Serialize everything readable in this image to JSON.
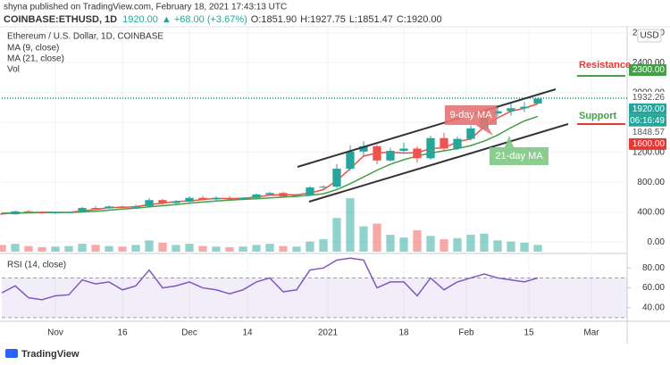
{
  "header": {
    "publisher": "shyna published on TradingView.com, February 18, 2021 17:43:13 UTC",
    "symbol": "COINBASE:ETHUSD, 1D",
    "last": "1920.00",
    "change": "▲ +68.00 (+3.67%)",
    "ohlc": [
      "O:1851.90",
      "H:1927.75",
      "L:1851.47",
      "C:1920.00"
    ]
  },
  "chart_data": {
    "type": "candlestick",
    "title": "Ethereum / U.S. Dollar, 1D, COINBASE",
    "x": [
      0,
      3,
      6,
      9,
      12,
      15,
      18,
      21,
      24,
      27,
      30,
      33,
      36,
      39,
      42,
      45,
      48,
      51,
      54,
      57,
      60,
      63,
      66,
      69,
      72,
      75,
      78,
      81,
      84,
      87,
      90,
      93,
      96,
      99,
      102,
      105,
      108,
      111,
      114,
      117,
      120
    ],
    "xlim": [
      0,
      140
    ],
    "xticks": [
      {
        "value": 12,
        "label": "Nov"
      },
      {
        "value": 27,
        "label": "16"
      },
      {
        "value": 42,
        "label": "Dec"
      },
      {
        "value": 55,
        "label": "14"
      },
      {
        "value": 73,
        "label": "2021"
      },
      {
        "value": 90,
        "label": "18"
      },
      {
        "value": 104,
        "label": "Feb"
      },
      {
        "value": 118,
        "label": "15"
      },
      {
        "value": 132,
        "label": "Mar"
      }
    ],
    "open": [
      380,
      370,
      410,
      395,
      385,
      395,
      400,
      455,
      450,
      475,
      460,
      480,
      560,
      520,
      540,
      590,
      570,
      590,
      575,
      590,
      635,
      655,
      610,
      625,
      730,
      740,
      980,
      1210,
      1280,
      1090,
      1220,
      1250,
      1120,
      1390,
      1250,
      1380,
      1520,
      1720,
      1750,
      1790,
      1851.9
    ],
    "high": [
      395,
      420,
      425,
      410,
      400,
      405,
      470,
      480,
      490,
      485,
      500,
      590,
      575,
      560,
      610,
      615,
      610,
      610,
      600,
      650,
      670,
      670,
      640,
      750,
      760,
      1040,
      1290,
      1350,
      1300,
      1260,
      1330,
      1280,
      1420,
      1460,
      1410,
      1560,
      1760,
      1830,
      1850,
      1870,
      1927.75
    ],
    "low": [
      360,
      365,
      390,
      380,
      375,
      385,
      395,
      440,
      440,
      455,
      450,
      470,
      500,
      505,
      525,
      560,
      550,
      565,
      560,
      580,
      620,
      600,
      600,
      615,
      715,
      720,
      960,
      1150,
      1040,
      1080,
      1180,
      1060,
      1100,
      1220,
      1230,
      1360,
      1500,
      1680,
      1690,
      1740,
      1851.47
    ],
    "close": [
      370,
      410,
      395,
      385,
      395,
      400,
      455,
      450,
      475,
      460,
      480,
      560,
      520,
      540,
      590,
      570,
      590,
      575,
      590,
      635,
      655,
      610,
      625,
      730,
      740,
      980,
      1210,
      1280,
      1090,
      1220,
      1250,
      1120,
      1390,
      1250,
      1380,
      1520,
      1720,
      1750,
      1790,
      1810,
      1920
    ],
    "up_color": "#26a69a",
    "down_color": "#ef5350",
    "ylim": [
      -130,
      2880
    ],
    "yticks": [
      {
        "value": 0,
        "label": "0.00"
      },
      {
        "value": 400,
        "label": "400.00"
      },
      {
        "value": 800,
        "label": "800.00"
      },
      {
        "value": 1200,
        "label": "1200.00"
      },
      {
        "value": 1600,
        "label": "1600.00"
      },
      {
        "value": 2000,
        "label": "2000.00"
      },
      {
        "value": 2400,
        "label": "2400.00"
      },
      {
        "value": 2800,
        "label": "2800.00"
      }
    ],
    "grid": true,
    "series": [
      {
        "name": "MA (9, close)",
        "color": "#f0503f",
        "values": [
          380,
          385,
          392,
          397,
          397,
          394,
          417,
          435,
          460,
          462,
          472,
          500,
          520,
          540,
          550,
          567,
          583,
          578,
          585,
          600,
          627,
          633,
          630,
          655,
          700,
          820,
          980,
          1150,
          1190,
          1200,
          1190,
          1195,
          1250,
          1260,
          1340,
          1380,
          1540,
          1660,
          1750,
          1790,
          1848.57
        ]
      },
      {
        "name": "MA (21, close)",
        "color": "#43a047",
        "values": [
          385,
          388,
          390,
          392,
          394,
          395,
          400,
          410,
          425,
          440,
          452,
          470,
          485,
          500,
          520,
          535,
          548,
          560,
          570,
          578,
          590,
          600,
          610,
          625,
          645,
          700,
          780,
          870,
          960,
          1040,
          1100,
          1150,
          1190,
          1220,
          1250,
          1290,
          1350,
          1430,
          1530,
          1620,
          1680
        ]
      }
    ],
    "volume": {
      "name": "Vol",
      "values": [
        12,
        14,
        10,
        8,
        9,
        10,
        14,
        12,
        10,
        9,
        12,
        20,
        16,
        12,
        14,
        10,
        9,
        8,
        9,
        12,
        14,
        10,
        9,
        18,
        22,
        60,
        95,
        45,
        50,
        30,
        25,
        38,
        28,
        22,
        24,
        30,
        32,
        20,
        18,
        16,
        12
      ],
      "ylim": [
        0,
        400
      ]
    },
    "price_labels": [
      {
        "value": 2300,
        "label": "2300.00",
        "color": "#43a047"
      },
      {
        "value": 1932.26,
        "label": "1932.26"
      },
      {
        "value": 1920,
        "label": "1920.00",
        "color": "#26a69a"
      },
      {
        "value": 1848.57,
        "label": "1848.57"
      },
      {
        "value": 1600,
        "label": "1600.00",
        "color": "#e53935"
      }
    ],
    "countdown": "06:16:49",
    "currency": "USD",
    "annotations": {
      "resistance": "Resistance",
      "support": "Support",
      "ma9": "9-day MA",
      "ma21": "21-day MA"
    },
    "rsi": {
      "title": "RSI (14, close)",
      "color": "#7e57c2",
      "values": [
        55,
        62,
        50,
        48,
        52,
        53,
        68,
        64,
        66,
        58,
        62,
        78,
        60,
        62,
        66,
        60,
        58,
        54,
        58,
        66,
        70,
        56,
        58,
        78,
        80,
        88,
        90,
        88,
        60,
        66,
        66,
        52,
        70,
        58,
        66,
        70,
        74,
        70,
        68,
        66,
        70
      ],
      "ylim": [
        29,
        92
      ],
      "band": [
        30,
        70
      ],
      "yticks": [
        {
          "value": 40,
          "label": "40.00"
        },
        {
          "value": 60,
          "label": "60.00"
        },
        {
          "value": 80,
          "label": "80.00"
        }
      ]
    }
  },
  "footer": "TradingView"
}
